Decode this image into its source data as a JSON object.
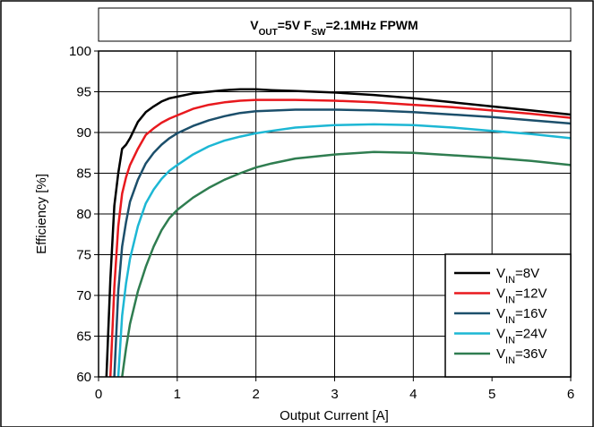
{
  "chart_data": {
    "type": "line",
    "title": {
      "parts": [
        {
          "text": "V",
          "sub": false
        },
        {
          "text": "OUT",
          "sub": true
        },
        {
          "text": "=5V F",
          "sub": false
        },
        {
          "text": "SW",
          "sub": true
        },
        {
          "text": "=2.1MHz FPWM",
          "sub": false
        }
      ]
    },
    "xlabel": "Output Current [A]",
    "ylabel": "Efficiency [%]",
    "xlim": [
      0,
      6
    ],
    "ylim": [
      60,
      100
    ],
    "xticks": [
      0,
      1,
      2,
      3,
      4,
      5,
      6
    ],
    "yticks": [
      60,
      65,
      70,
      75,
      80,
      85,
      90,
      95,
      100
    ],
    "grid": true,
    "legend_position": "bottom-right",
    "series": [
      {
        "name": "VIN=8V",
        "label_parts": [
          {
            "text": "V",
            "sub": false
          },
          {
            "text": "IN",
            "sub": true
          },
          {
            "text": "=8V",
            "sub": false
          }
        ],
        "color": "#000000",
        "x": [
          0.1,
          0.15,
          0.2,
          0.25,
          0.3,
          0.35,
          0.4,
          0.5,
          0.6,
          0.7,
          0.8,
          0.9,
          1.0,
          1.2,
          1.4,
          1.6,
          1.8,
          2.0,
          2.2,
          2.5,
          3.0,
          3.5,
          4.0,
          4.5,
          5.0,
          5.5,
          6.0
        ],
        "y": [
          60,
          72,
          81,
          85,
          88,
          88.5,
          89.3,
          91.3,
          92.5,
          93.2,
          93.8,
          94.2,
          94.4,
          94.8,
          95.0,
          95.2,
          95.3,
          95.3,
          95.2,
          95.1,
          94.9,
          94.6,
          94.2,
          93.7,
          93.2,
          92.7,
          92.2
        ]
      },
      {
        "name": "VIN=12V",
        "label_parts": [
          {
            "text": "V",
            "sub": false
          },
          {
            "text": "IN",
            "sub": true
          },
          {
            "text": "=12V",
            "sub": false
          }
        ],
        "color": "#e8191e",
        "x": [
          0.15,
          0.2,
          0.25,
          0.3,
          0.35,
          0.4,
          0.5,
          0.6,
          0.7,
          0.8,
          0.9,
          1.0,
          1.2,
          1.4,
          1.6,
          1.8,
          2.0,
          2.5,
          3.0,
          3.5,
          4.0,
          4.5,
          5.0,
          5.5,
          6.0
        ],
        "y": [
          60,
          71,
          78.5,
          82.5,
          84.5,
          86,
          88,
          89.7,
          90.5,
          91.2,
          91.7,
          92.1,
          92.9,
          93.4,
          93.7,
          93.9,
          94.0,
          94.0,
          93.9,
          93.7,
          93.4,
          93.1,
          92.7,
          92.3,
          91.8
        ]
      },
      {
        "name": "VIN=16V",
        "label_parts": [
          {
            "text": "V",
            "sub": false
          },
          {
            "text": "IN",
            "sub": true
          },
          {
            "text": "=16V",
            "sub": false
          }
        ],
        "color": "#1c4f6b",
        "x": [
          0.2,
          0.25,
          0.3,
          0.35,
          0.4,
          0.5,
          0.6,
          0.7,
          0.8,
          0.9,
          1.0,
          1.2,
          1.4,
          1.6,
          1.8,
          2.0,
          2.5,
          3.0,
          3.5,
          4.0,
          4.5,
          5.0,
          5.5,
          6.0
        ],
        "y": [
          60,
          70.5,
          76,
          79,
          81.5,
          84.2,
          86.2,
          87.5,
          88.5,
          89.3,
          89.9,
          90.8,
          91.5,
          92.0,
          92.4,
          92.6,
          92.8,
          92.8,
          92.7,
          92.5,
          92.2,
          91.9,
          91.5,
          91.1
        ]
      },
      {
        "name": "VIN=24V",
        "label_parts": [
          {
            "text": "V",
            "sub": false
          },
          {
            "text": "IN",
            "sub": true
          },
          {
            "text": "=24V",
            "sub": false
          }
        ],
        "color": "#1db7d4",
        "x": [
          0.25,
          0.3,
          0.35,
          0.4,
          0.5,
          0.6,
          0.7,
          0.8,
          0.9,
          1.0,
          1.2,
          1.4,
          1.6,
          1.8,
          2.0,
          2.2,
          2.5,
          3.0,
          3.5,
          4.0,
          4.5,
          5.0,
          5.5,
          6.0
        ],
        "y": [
          60,
          67.5,
          71.5,
          74.5,
          78.5,
          81.3,
          83,
          84.3,
          85.3,
          86.0,
          87.3,
          88.3,
          89.0,
          89.5,
          89.9,
          90.2,
          90.6,
          90.9,
          91.0,
          90.9,
          90.6,
          90.2,
          89.8,
          89.3
        ]
      },
      {
        "name": "VIN=36V",
        "label_parts": [
          {
            "text": "V",
            "sub": false
          },
          {
            "text": "IN",
            "sub": true
          },
          {
            "text": "=36V",
            "sub": false
          }
        ],
        "color": "#2f7d50",
        "x": [
          0.3,
          0.35,
          0.4,
          0.5,
          0.6,
          0.7,
          0.8,
          0.9,
          1.0,
          1.2,
          1.4,
          1.6,
          1.8,
          2.0,
          2.2,
          2.5,
          3.0,
          3.5,
          4.0,
          4.5,
          5.0,
          5.5,
          6.0
        ],
        "y": [
          60,
          63.5,
          66.5,
          70.5,
          73.5,
          76,
          78,
          79.5,
          80.5,
          82.0,
          83.2,
          84.2,
          85.0,
          85.7,
          86.2,
          86.8,
          87.3,
          87.6,
          87.5,
          87.2,
          86.9,
          86.5,
          86.0
        ]
      }
    ]
  }
}
